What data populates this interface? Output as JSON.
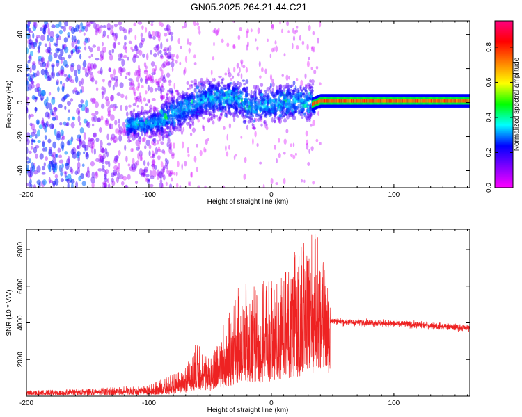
{
  "title": "GN05.2025.264.21.44.C21",
  "chart_data": [
    {
      "type": "heatmap",
      "xlabel": "Height of straight line (km)",
      "ylabel": "Frequency (Hz)",
      "xlim": [
        -200,
        162
      ],
      "ylim": [
        -50,
        48
      ],
      "xticks": [
        -200,
        -100,
        0,
        100
      ],
      "yticks": [
        -40,
        -20,
        0,
        20,
        40
      ],
      "colorbar": {
        "label": "Normalized spectral amplitude",
        "range": [
          0,
          0.95
        ],
        "ticks": [
          0.0,
          0.2,
          0.4,
          0.6,
          0.8
        ],
        "colors": [
          "#ff00ff",
          "#8000ff",
          "#0000ff",
          "#00ffff",
          "#00ff00",
          "#ffff00",
          "#ff8000",
          "#ff0000",
          "#ff0080"
        ]
      },
      "features": [
        {
          "name": "noise",
          "x_range": [
            -200,
            -115
          ],
          "amplitude": 0.15
        },
        {
          "name": "wavering band",
          "x_range": [
            -115,
            35
          ],
          "center_freq": [
            -12,
            2
          ],
          "amplitude": 0.3
        },
        {
          "name": "steady tone",
          "x_range": [
            35,
            162
          ],
          "freq": 1,
          "amplitude": 0.75
        }
      ]
    },
    {
      "type": "line",
      "xlabel": "Height of straight line (km)",
      "ylabel": "SNR (10 * V/V)",
      "xlim": [
        -200,
        162
      ],
      "ylim": [
        0,
        9100
      ],
      "xticks": [
        -200,
        -100,
        0,
        100
      ],
      "yticks": [
        2000,
        4000,
        6000,
        8000
      ],
      "series": [
        {
          "name": "SNR",
          "color": "#ee2222",
          "x": [
            -200,
            -150,
            -100,
            -80,
            -70,
            -60,
            -50,
            -40,
            -30,
            -20,
            -10,
            0,
            10,
            20,
            30,
            40,
            50,
            60,
            80,
            100,
            130,
            162
          ],
          "values": [
            150,
            200,
            250,
            400,
            700,
            1200,
            1000,
            1500,
            2000,
            2200,
            2400,
            2600,
            3000,
            3500,
            4000,
            4200,
            4100,
            4050,
            4000,
            3950,
            3850,
            3700
          ],
          "peak_values": [
            300,
            400,
            600,
            1200,
            1600,
            3100,
            2000,
            4000,
            5600,
            6600,
            6200,
            6400,
            6500,
            8200,
            9100,
            8800,
            4200,
            4200,
            4150,
            4100,
            4000,
            4000
          ]
        }
      ]
    }
  ]
}
